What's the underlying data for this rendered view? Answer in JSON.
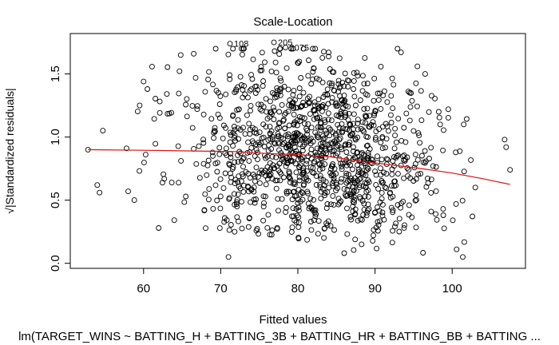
{
  "chart_data": {
    "type": "scatter",
    "title": "Scale-Location",
    "xlabel": "Fitted values",
    "ylabel": "√|Standardized residuals|",
    "subtitle": "lm(TARGET_WINS ~ BATTING_H + BATTING_3B + BATTING_HR + BATTING_BB + BATTING ...",
    "xlim": [
      50.5,
      109.5
    ],
    "ylim": [
      -0.04,
      1.82
    ],
    "x_ticks": [
      60,
      70,
      80,
      90,
      100
    ],
    "y_ticks": [
      0.0,
      0.5,
      1.0,
      1.5
    ],
    "y_tick_labels": [
      "0.0",
      "0.5",
      "1.0",
      "1.5"
    ],
    "x_tick_labels": [
      "60",
      "70",
      "80",
      "90",
      "100"
    ],
    "labeled_points": [
      {
        "label": "108",
        "x": 71.2,
        "y": 1.74
      },
      {
        "label": "205",
        "x": 76.9,
        "y": 1.75
      },
      {
        "label": "2075",
        "x": 78.4,
        "y": 1.71
      }
    ],
    "smooth_line": {
      "color": "#e01010",
      "x": [
        52.8,
        60,
        66,
        72,
        76,
        80,
        84,
        88,
        92,
        96,
        100,
        104,
        107.5
      ],
      "y": [
        0.9,
        0.895,
        0.89,
        0.885,
        0.87,
        0.86,
        0.845,
        0.81,
        0.78,
        0.75,
        0.715,
        0.67,
        0.625
      ]
    },
    "point_color": "#000000",
    "n_points": 1200,
    "distribution": "dense cloud centered near x=82, y=0.85; x mostly 64–98, tails to 52 and 108; y from 0.05 to 1.75"
  }
}
